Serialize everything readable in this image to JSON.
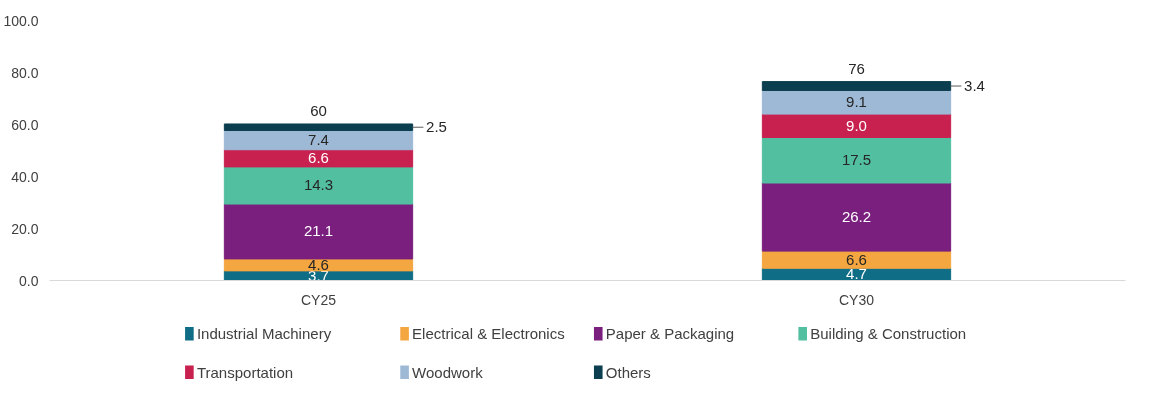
{
  "chart_data": {
    "type": "bar",
    "stacked": true,
    "categories": [
      "CY25",
      "CY30"
    ],
    "series": [
      {
        "name": "Industrial Machinery",
        "color": "#0f6e86",
        "values": [
          3.7,
          4.7
        ],
        "value_labels": [
          "3.7",
          "4.7"
        ]
      },
      {
        "name": "Electrical & Electronics",
        "color": "#f4a640",
        "values": [
          4.6,
          6.6
        ],
        "value_labels": [
          "4.6",
          "6.6"
        ]
      },
      {
        "name": "Paper & Packaging",
        "color": "#7a1f7e",
        "values": [
          21.1,
          26.2
        ],
        "value_labels": [
          "21.1",
          "26.2"
        ]
      },
      {
        "name": "Building & Construction",
        "color": "#52bfa0",
        "values": [
          14.3,
          17.5
        ],
        "value_labels": [
          "14.3",
          "17.5"
        ]
      },
      {
        "name": "Transportation",
        "color": "#c8204f",
        "values": [
          6.6,
          9.0
        ],
        "value_labels": [
          "6.6",
          "9.0"
        ]
      },
      {
        "name": "Woodwork",
        "color": "#9db9d6",
        "values": [
          7.4,
          9.1
        ],
        "value_labels": [
          "7.4",
          "9.1"
        ]
      },
      {
        "name": "Others",
        "color": "#0b3e4e",
        "values": [
          2.5,
          3.4
        ],
        "value_labels": [
          "2.5",
          "3.4"
        ]
      }
    ],
    "totals": [
      "60",
      "76"
    ],
    "ylim": [
      0,
      100
    ],
    "yticks": [
      {
        "value": 0,
        "label": "0.0"
      },
      {
        "value": 20,
        "label": "20.0"
      },
      {
        "value": 40,
        "label": "40.0"
      },
      {
        "value": 60,
        "label": "60.0"
      },
      {
        "value": 80,
        "label": "80.0"
      },
      {
        "value": 100,
        "label": "100.0"
      }
    ],
    "grid": false,
    "legend": "bottom"
  }
}
